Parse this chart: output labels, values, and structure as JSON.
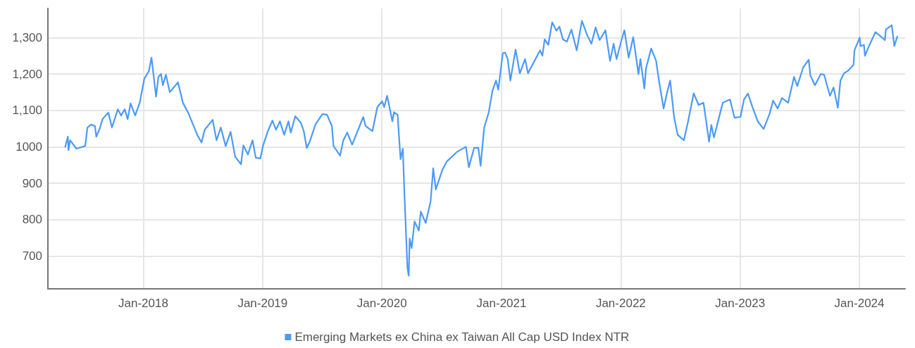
{
  "chart_data": {
    "type": "line",
    "legend": "bottom",
    "grid": true,
    "marker": "none",
    "line_style": "solid",
    "xlim": [
      "2017-03-15",
      "2024-05-20"
    ],
    "xticks": [
      {
        "value": "2018-01-01",
        "label": "Jan-2018"
      },
      {
        "value": "2019-01-01",
        "label": "Jan-2019"
      },
      {
        "value": "2020-01-01",
        "label": "Jan-2020"
      },
      {
        "value": "2021-01-01",
        "label": "Jan-2021"
      },
      {
        "value": "2022-01-01",
        "label": "Jan-2022"
      },
      {
        "value": "2023-01-01",
        "label": "Jan-2023"
      },
      {
        "value": "2024-01-01",
        "label": "Jan-2024"
      }
    ],
    "ylim": [
      610,
      1380
    ],
    "yticks": [
      700,
      800,
      900,
      1000,
      {
        "value": 1100,
        "label": "1,100"
      },
      {
        "value": 1200,
        "label": "1,200"
      },
      {
        "value": 1300,
        "label": "1,300"
      }
    ],
    "x": [
      "2017-05-07",
      "2017-05-15",
      "2017-05-17",
      "2017-05-22",
      "2017-06-10",
      "2017-07-07",
      "2017-07-14",
      "2017-07-25",
      "2017-08-06",
      "2017-08-10",
      "2017-08-21",
      "2017-08-29",
      "2017-09-16",
      "2017-09-27",
      "2017-10-15",
      "2017-10-25",
      "2017-11-05",
      "2017-11-14",
      "2017-11-23",
      "2017-12-07",
      "2017-12-21",
      "2018-01-04",
      "2018-01-18",
      "2018-01-26",
      "2018-02-09",
      "2018-02-16",
      "2018-02-24",
      "2018-03-02",
      "2018-03-11",
      "2018-03-23",
      "2018-04-17",
      "2018-05-02",
      "2018-05-19",
      "2018-06-16",
      "2018-06-28",
      "2018-07-08",
      "2018-08-01",
      "2018-08-13",
      "2018-08-26",
      "2018-09-10",
      "2018-09-25",
      "2018-10-09",
      "2018-10-27",
      "2018-11-03",
      "2018-11-17",
      "2018-12-01",
      "2018-12-11",
      "2018-12-25",
      "2019-01-02",
      "2019-01-17",
      "2019-01-31",
      "2019-02-11",
      "2019-02-23",
      "2019-03-08",
      "2019-03-21",
      "2019-03-28",
      "2019-04-11",
      "2019-04-28",
      "2019-05-07",
      "2019-05-16",
      "2019-05-25",
      "2019-06-12",
      "2019-07-03",
      "2019-07-17",
      "2019-08-01",
      "2019-08-06",
      "2019-08-26",
      "2019-09-05",
      "2019-09-17",
      "2019-10-02",
      "2019-11-05",
      "2019-11-12",
      "2019-12-03",
      "2019-12-18",
      "2020-01-02",
      "2020-01-08",
      "2020-01-17",
      "2020-02-02",
      "2020-02-07",
      "2020-02-18",
      "2020-02-27",
      "2020-03-05",
      "2020-03-10",
      "2020-03-19",
      "2020-03-23",
      "2020-03-26",
      "2020-04-01",
      "2020-04-10",
      "2020-04-23",
      "2020-04-29",
      "2020-05-14",
      "2020-05-29",
      "2020-06-06",
      "2020-06-14",
      "2020-07-04",
      "2020-07-18",
      "2020-08-16",
      "2020-09-14",
      "2020-09-23",
      "2020-10-09",
      "2020-10-22",
      "2020-10-29",
      "2020-11-09",
      "2020-11-23",
      "2020-12-04",
      "2020-12-15",
      "2020-12-22",
      "2021-01-05",
      "2021-01-12",
      "2021-01-20",
      "2021-01-28",
      "2021-02-13",
      "2021-02-26",
      "2021-03-14",
      "2021-03-23",
      "2021-04-29",
      "2021-05-06",
      "2021-05-13",
      "2021-05-24",
      "2021-06-05",
      "2021-06-18",
      "2021-06-27",
      "2021-07-08",
      "2021-07-20",
      "2021-08-03",
      "2021-08-19",
      "2021-09-04",
      "2021-09-19",
      "2021-10-03",
      "2021-10-16",
      "2021-10-28",
      "2021-11-15",
      "2021-11-29",
      "2021-12-10",
      "2021-12-19",
      "2022-01-03",
      "2022-01-12",
      "2022-01-25",
      "2022-02-08",
      "2022-02-24",
      "2022-03-02",
      "2022-03-14",
      "2022-03-19",
      "2022-04-04",
      "2022-04-19",
      "2022-04-27",
      "2022-05-12",
      "2022-05-22",
      "2022-06-01",
      "2022-06-13",
      "2022-06-24",
      "2022-07-13",
      "2022-07-25",
      "2022-08-12",
      "2022-08-27",
      "2022-09-11",
      "2022-09-28",
      "2022-10-05",
      "2022-10-13",
      "2022-11-09",
      "2022-12-01",
      "2022-12-15",
      "2023-01-02",
      "2023-01-13",
      "2023-01-25",
      "2023-02-08",
      "2023-02-24",
      "2023-03-14",
      "2023-04-01",
      "2023-04-12",
      "2023-04-26",
      "2023-05-09",
      "2023-05-28",
      "2023-06-15",
      "2023-06-25",
      "2023-07-13",
      "2023-07-30",
      "2023-08-04",
      "2023-08-18",
      "2023-09-05",
      "2023-09-15",
      "2023-10-03",
      "2023-10-14",
      "2023-10-27",
      "2023-11-04",
      "2023-11-15",
      "2023-11-26",
      "2023-12-14",
      "2023-12-17",
      "2024-01-02",
      "2024-01-04",
      "2024-01-15",
      "2024-01-18",
      "2024-02-01",
      "2024-02-19",
      "2024-03-04",
      "2024-03-19",
      "2024-03-22",
      "2024-04-09",
      "2024-04-17",
      "2024-04-26"
    ],
    "series": [
      {
        "name": "Emerging Markets ex China ex Taiwan All Cap USD Index NTR",
        "color": "#4a9bf7",
        "values": [
          1000,
          1028,
          991,
          1018,
          995,
          1002,
          1053,
          1061,
          1057,
          1028,
          1051,
          1076,
          1094,
          1053,
          1103,
          1086,
          1103,
          1076,
          1119,
          1086,
          1121,
          1187,
          1208,
          1245,
          1138,
          1192,
          1200,
          1169,
          1198,
          1150,
          1177,
          1121,
          1092,
          1031,
          1012,
          1047,
          1074,
          1018,
          1053,
          1002,
          1041,
          973,
          952,
          1004,
          979,
          1018,
          970,
          968,
          1002,
          1043,
          1072,
          1047,
          1070,
          1033,
          1070,
          1039,
          1084,
          1066,
          1043,
          997,
          1014,
          1062,
          1090,
          1088,
          1057,
          1002,
          976,
          1018,
          1039,
          1006,
          1082,
          1057,
          1043,
          1109,
          1125,
          1109,
          1140,
          1070,
          1095,
          1088,
          966,
          995,
          869,
          669,
          646,
          748,
          722,
          795,
          770,
          822,
          791,
          850,
          941,
          883,
          937,
          960,
          985,
          1000,
          944,
          997,
          997,
          948,
          1053,
          1095,
          1153,
          1182,
          1157,
          1257,
          1259,
          1241,
          1182,
          1267,
          1202,
          1241,
          1202,
          1265,
          1250,
          1295,
          1280,
          1342,
          1319,
          1330,
          1295,
          1289,
          1322,
          1265,
          1346,
          1309,
          1283,
          1328,
          1293,
          1320,
          1236,
          1283,
          1241,
          1293,
          1320,
          1245,
          1301,
          1200,
          1241,
          1160,
          1215,
          1270,
          1236,
          1186,
          1105,
          1147,
          1182,
          1082,
          1033,
          1018,
          1066,
          1147,
          1115,
          1121,
          1014,
          1060,
          1026,
          1121,
          1130,
          1080,
          1082,
          1130,
          1146,
          1109,
          1070,
          1049,
          1090,
          1127,
          1105,
          1134,
          1121,
          1192,
          1167,
          1218,
          1239,
          1196,
          1169,
          1200,
          1198,
          1140,
          1163,
          1107,
          1182,
          1202,
          1208,
          1225,
          1265,
          1300,
          1277,
          1280,
          1250,
          1280,
          1315,
          1305,
          1293,
          1322,
          1334,
          1277,
          1303
        ]
      }
    ]
  }
}
